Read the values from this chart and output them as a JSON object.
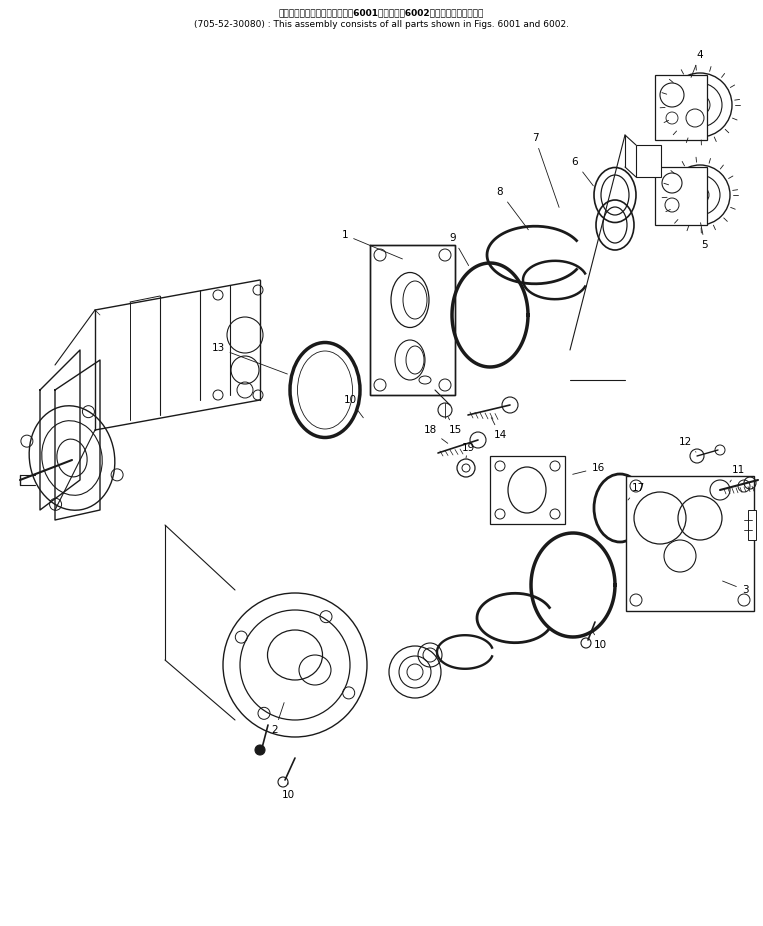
{
  "title_jp": "このアセンブリの構成部品は第6001図および第6002図の部品を含みます。",
  "title_en": "(705-52-30080) : This assembly consists of all parts shown in Figs. 6001 and 6002.",
  "bg_color": "#ffffff",
  "line_color": "#1a1a1a",
  "text_color": "#000000",
  "fig_width": 7.63,
  "fig_height": 9.26,
  "dpi": 100
}
